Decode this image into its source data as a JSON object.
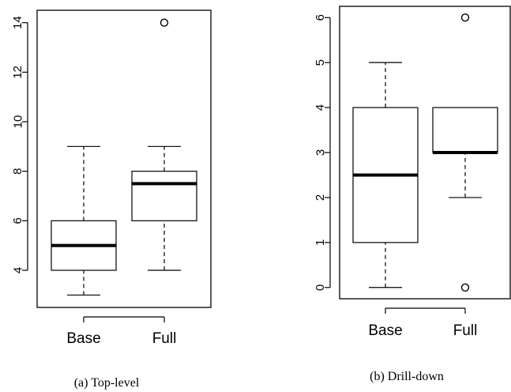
{
  "chart_data": [
    {
      "type": "boxplot",
      "caption": "(a) Top-level",
      "categories": [
        "Base",
        "Full"
      ],
      "ylim": [
        2.5,
        14.5
      ],
      "yticks": [
        4,
        6,
        8,
        10,
        12,
        14
      ],
      "boxes": [
        {
          "label": "Base",
          "min": 3,
          "q1": 4,
          "median": 5,
          "q3": 6,
          "max": 9,
          "outliers": []
        },
        {
          "label": "Full",
          "min": 4,
          "q1": 6,
          "median": 7.5,
          "q3": 8,
          "max": 9,
          "outliers": [
            14
          ]
        }
      ]
    },
    {
      "type": "boxplot",
      "caption": "(b) Drill-down",
      "categories": [
        "Base",
        "Full"
      ],
      "ylim": [
        -0.25,
        6.25
      ],
      "yticks": [
        0,
        1,
        2,
        3,
        4,
        5,
        6
      ],
      "boxes": [
        {
          "label": "Base",
          "min": 0,
          "q1": 1,
          "median": 2.5,
          "q3": 4,
          "max": 5,
          "outliers": []
        },
        {
          "label": "Full",
          "min": 2,
          "q1": 3,
          "median": 3,
          "q3": 4,
          "max": 4,
          "outliers": [
            0,
            6
          ]
        }
      ]
    }
  ]
}
